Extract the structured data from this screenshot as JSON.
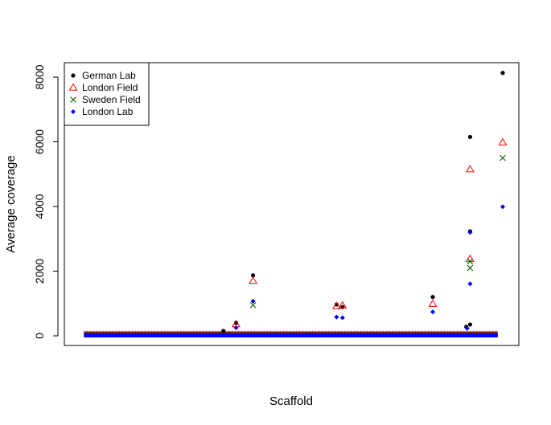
{
  "chart_data": {
    "type": "scatter",
    "title": "",
    "xlabel": "Scaffold",
    "ylabel": "Average coverage",
    "ylim": [
      0,
      8200
    ],
    "xlim": [
      0,
      100
    ],
    "y_ticks": [
      "0",
      "2000",
      "4000",
      "6000",
      "8000"
    ],
    "y_tick_values": [
      0,
      2000,
      4000,
      6000,
      8000
    ],
    "grid": false,
    "legend_position": "top-left",
    "baseline_band": {
      "x_start": 1.2,
      "x_end": 98.8,
      "y_values": [
        0,
        20,
        40,
        60
      ]
    },
    "series": [
      {
        "name": "German Lab",
        "marker": "filled-circle",
        "color": "#000000",
        "points": [
          {
            "x": 34.1,
            "y": 150
          },
          {
            "x": 37.1,
            "y": 400
          },
          {
            "x": 41.1,
            "y": 1870
          },
          {
            "x": 60.8,
            "y": 970
          },
          {
            "x": 62.2,
            "y": 890
          },
          {
            "x": 83.5,
            "y": 1200
          },
          {
            "x": 91.4,
            "y": 280
          },
          {
            "x": 92.3,
            "y": 350
          },
          {
            "x": 92.3,
            "y": 6150
          },
          {
            "x": 92.3,
            "y": 3230
          },
          {
            "x": 100,
            "y": 8130
          }
        ]
      },
      {
        "name": "London Field",
        "marker": "open-triangle",
        "color": "#ff0000",
        "points": [
          {
            "x": 37.1,
            "y": 360
          },
          {
            "x": 41.1,
            "y": 1700
          },
          {
            "x": 60.8,
            "y": 920
          },
          {
            "x": 62.2,
            "y": 940
          },
          {
            "x": 83.5,
            "y": 990
          },
          {
            "x": 92.3,
            "y": 5150
          },
          {
            "x": 92.3,
            "y": 2380
          },
          {
            "x": 100,
            "y": 5980
          }
        ]
      },
      {
        "name": "Sweden Field",
        "marker": "cross",
        "color": "#006400",
        "points": [
          {
            "x": 41.1,
            "y": 950
          },
          {
            "x": 92.3,
            "y": 2100
          },
          {
            "x": 92.3,
            "y": 2300
          },
          {
            "x": 100,
            "y": 5500
          }
        ]
      },
      {
        "name": "London Lab",
        "marker": "filled-diamond",
        "color": "#0000ff",
        "points": [
          {
            "x": 37.1,
            "y": 250
          },
          {
            "x": 41.1,
            "y": 1070
          },
          {
            "x": 60.8,
            "y": 580
          },
          {
            "x": 62.2,
            "y": 560
          },
          {
            "x": 83.5,
            "y": 740
          },
          {
            "x": 92.3,
            "y": 3200
          },
          {
            "x": 92.3,
            "y": 1610
          },
          {
            "x": 91.6,
            "y": 230
          },
          {
            "x": 100,
            "y": 3990
          }
        ]
      }
    ]
  }
}
